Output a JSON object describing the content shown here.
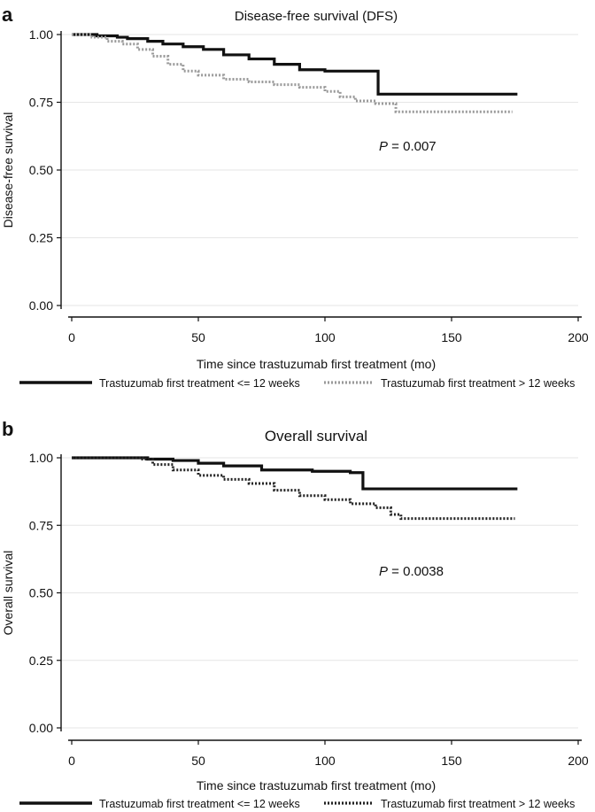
{
  "chart_data": [
    {
      "type": "line",
      "panel": "a",
      "title": "Disease-free survival (DFS)",
      "xlabel": "Time since trastuzumab first treatment (mo)",
      "ylabel": "Disease-free survival",
      "xlim": [
        0,
        200
      ],
      "ylim": [
        0,
        1
      ],
      "xticks": [
        "0",
        "50",
        "100",
        "150",
        "200"
      ],
      "yticks": [
        "0.00",
        "0.25",
        "0.50",
        "0.75",
        "1.00"
      ],
      "annotation": {
        "prefix": "P",
        "text": " = 0.007"
      },
      "series": [
        {
          "name": "Trastuzumab first treatment <= 12 weeks",
          "style": "solid",
          "color": "#111111",
          "x": [
            0,
            10,
            18,
            22,
            30,
            36,
            44,
            52,
            60,
            70,
            80,
            90,
            100,
            110,
            121,
            128,
            176
          ],
          "y": [
            1.0,
            0.995,
            0.99,
            0.985,
            0.975,
            0.965,
            0.955,
            0.945,
            0.925,
            0.91,
            0.89,
            0.87,
            0.865,
            0.865,
            0.78,
            0.78,
            0.78
          ]
        },
        {
          "name": "Trastuzumab first treatment > 12 weeks",
          "style": "dotted",
          "color": "#9a9a9a",
          "x": [
            0,
            8,
            14,
            20,
            26,
            32,
            38,
            44,
            50,
            60,
            70,
            80,
            90,
            100,
            106,
            112,
            120,
            128,
            140,
            160,
            174
          ],
          "y": [
            1.0,
            0.99,
            0.975,
            0.965,
            0.945,
            0.92,
            0.89,
            0.865,
            0.85,
            0.835,
            0.825,
            0.815,
            0.805,
            0.79,
            0.77,
            0.755,
            0.745,
            0.715,
            0.715,
            0.715,
            0.715
          ]
        }
      ]
    },
    {
      "type": "line",
      "panel": "b",
      "title": "Overall survival",
      "xlabel": "Time since trastuzumab first treatment (mo)",
      "ylabel": "Overall survival",
      "xlim": [
        0,
        200
      ],
      "ylim": [
        0,
        1
      ],
      "xticks": [
        "0",
        "50",
        "100",
        "150",
        "200"
      ],
      "yticks": [
        "0.00",
        "0.25",
        "0.50",
        "0.75",
        "1.00"
      ],
      "annotation": {
        "prefix": "P",
        "text": " = 0.0038"
      },
      "series": [
        {
          "name": "Trastuzumab first treatment <= 12 weeks",
          "style": "solid",
          "color": "#111111",
          "x": [
            0,
            30,
            40,
            50,
            60,
            75,
            95,
            110,
            115,
            130,
            176
          ],
          "y": [
            1.0,
            0.995,
            0.99,
            0.98,
            0.97,
            0.955,
            0.95,
            0.945,
            0.885,
            0.885,
            0.885
          ]
        },
        {
          "name": "Trastuzumab first treatment > 12 weeks",
          "style": "dotted",
          "color": "#222222",
          "x": [
            0,
            28,
            32,
            40,
            50,
            60,
            70,
            80,
            90,
            100,
            110,
            120,
            126,
            130,
            150,
            175
          ],
          "y": [
            1.0,
            0.995,
            0.975,
            0.955,
            0.935,
            0.92,
            0.905,
            0.88,
            0.86,
            0.845,
            0.83,
            0.815,
            0.79,
            0.775,
            0.775,
            0.775
          ]
        }
      ]
    }
  ]
}
